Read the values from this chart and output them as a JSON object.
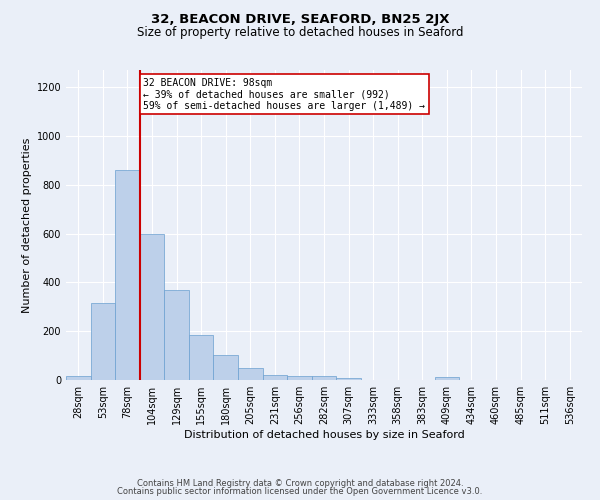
{
  "title1": "32, BEACON DRIVE, SEAFORD, BN25 2JX",
  "title2": "Size of property relative to detached houses in Seaford",
  "xlabel": "Distribution of detached houses by size in Seaford",
  "ylabel": "Number of detached properties",
  "categories": [
    "28sqm",
    "53sqm",
    "78sqm",
    "104sqm",
    "129sqm",
    "155sqm",
    "180sqm",
    "205sqm",
    "231sqm",
    "256sqm",
    "282sqm",
    "307sqm",
    "333sqm",
    "358sqm",
    "383sqm",
    "409sqm",
    "434sqm",
    "460sqm",
    "485sqm",
    "511sqm",
    "536sqm"
  ],
  "values": [
    15,
    315,
    860,
    600,
    370,
    185,
    103,
    48,
    22,
    18,
    18,
    10,
    0,
    0,
    0,
    12,
    0,
    0,
    0,
    0,
    0
  ],
  "bar_color": "#bdd0ea",
  "bar_edgecolor": "#6a9fd0",
  "vline_x": 2.5,
  "vline_color": "#cc0000",
  "annotation_line1": "32 BEACON DRIVE: 98sqm",
  "annotation_line2": "← 39% of detached houses are smaller (992)",
  "annotation_line3": "59% of semi-detached houses are larger (1,489) →",
  "annotation_box_facecolor": "#ffffff",
  "annotation_box_edgecolor": "#cc0000",
  "ylim": [
    0,
    1270
  ],
  "yticks": [
    0,
    200,
    400,
    600,
    800,
    1000,
    1200
  ],
  "footer1": "Contains HM Land Registry data © Crown copyright and database right 2024.",
  "footer2": "Contains public sector information licensed under the Open Government Licence v3.0.",
  "background_color": "#eaeff8",
  "plot_background": "#eaeff8",
  "grid_color": "#ffffff",
  "title1_fontsize": 9.5,
  "title2_fontsize": 8.5,
  "xlabel_fontsize": 8,
  "ylabel_fontsize": 8,
  "annotation_fontsize": 7,
  "tick_fontsize": 7
}
